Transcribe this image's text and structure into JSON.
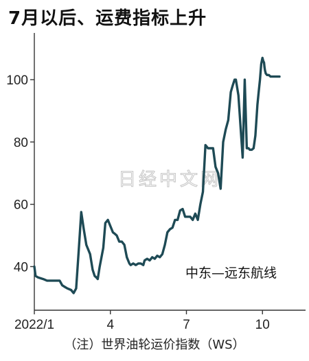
{
  "title": "7月以后、运费指标上升",
  "caption": "（注）世界油轮运价指数（WS）",
  "watermark": "日经中文网",
  "colors": {
    "line": "#1e4a55",
    "grid": "#dcdcdc",
    "axis": "#333333"
  },
  "chart_data": {
    "type": "line",
    "title": "7月以后、运费指标上升",
    "xlabel": "",
    "ylabel": "",
    "xlim": [
      0,
      10.7
    ],
    "ylim": [
      26,
      115
    ],
    "yticks": [
      40,
      60,
      80,
      100
    ],
    "xticks": [
      {
        "value": 0,
        "label": "2022/1"
      },
      {
        "value": 3,
        "label": "4"
      },
      {
        "value": 6,
        "label": "7"
      },
      {
        "value": 9,
        "label": "10"
      }
    ],
    "grid": false,
    "series": [
      {
        "name": "中东—远东航线",
        "x": [
          0,
          0.05,
          0.15,
          0.35,
          0.5,
          0.6,
          0.75,
          0.9,
          1.0,
          1.1,
          1.2,
          1.3,
          1.45,
          1.55,
          1.65,
          1.75,
          1.85,
          1.95,
          2.05,
          2.2,
          2.3,
          2.38,
          2.45,
          2.5,
          2.58,
          2.65,
          2.72,
          2.8,
          2.9,
          3.0,
          3.05,
          3.1,
          3.18,
          3.25,
          3.35,
          3.45,
          3.55,
          3.65,
          3.75,
          3.8,
          3.9,
          4.0,
          4.1,
          4.2,
          4.3,
          4.35,
          4.45,
          4.55,
          4.65,
          4.75,
          4.85,
          4.95,
          5.05,
          5.15,
          5.25,
          5.35,
          5.45,
          5.55,
          5.65,
          5.75,
          5.85,
          5.95,
          6.05,
          6.15,
          6.25,
          6.35,
          6.45,
          6.55,
          6.65,
          6.75,
          6.85,
          6.95,
          7.05,
          7.15,
          7.25,
          7.35,
          7.45,
          7.55,
          7.65,
          7.75,
          7.82,
          7.9,
          7.95,
          8.05,
          8.15,
          8.22,
          8.3,
          8.38,
          8.45,
          8.5,
          8.58,
          8.65,
          8.72,
          8.8,
          8.85,
          8.9,
          8.95,
          9.0,
          9.03,
          9.06,
          9.08,
          9.1,
          9.13,
          9.18,
          9.25,
          9.32,
          9.38,
          9.45,
          9.52,
          9.57,
          9.62,
          9.67
        ],
        "y": [
          40,
          37,
          36.5,
          36,
          35.5,
          35.5,
          35.5,
          35.5,
          35.5,
          34,
          33.5,
          33,
          32.5,
          31.5,
          33,
          45,
          57.5,
          52,
          47,
          44,
          39,
          37,
          36.5,
          36,
          40,
          43,
          46,
          54,
          55,
          53,
          52,
          51,
          50.5,
          50,
          48,
          48,
          47,
          43,
          41,
          40.5,
          41,
          40.5,
          41,
          41,
          40.5,
          42,
          42.5,
          42,
          43,
          42.5,
          43.5,
          43,
          44,
          47,
          51,
          52,
          52.5,
          55,
          55,
          58,
          58.5,
          56,
          56,
          56,
          55,
          57,
          55,
          60,
          64,
          79,
          78,
          78,
          78,
          72,
          70,
          65,
          80,
          84,
          87,
          96,
          98,
          100,
          100,
          95,
          83,
          75,
          100,
          78,
          78,
          77.5,
          77.5,
          78,
          82,
          92,
          96,
          100,
          105,
          107,
          106,
          105.5,
          104,
          103,
          102,
          101.5,
          101.5,
          101,
          101,
          101,
          101,
          101,
          101,
          101
        ]
      }
    ]
  }
}
